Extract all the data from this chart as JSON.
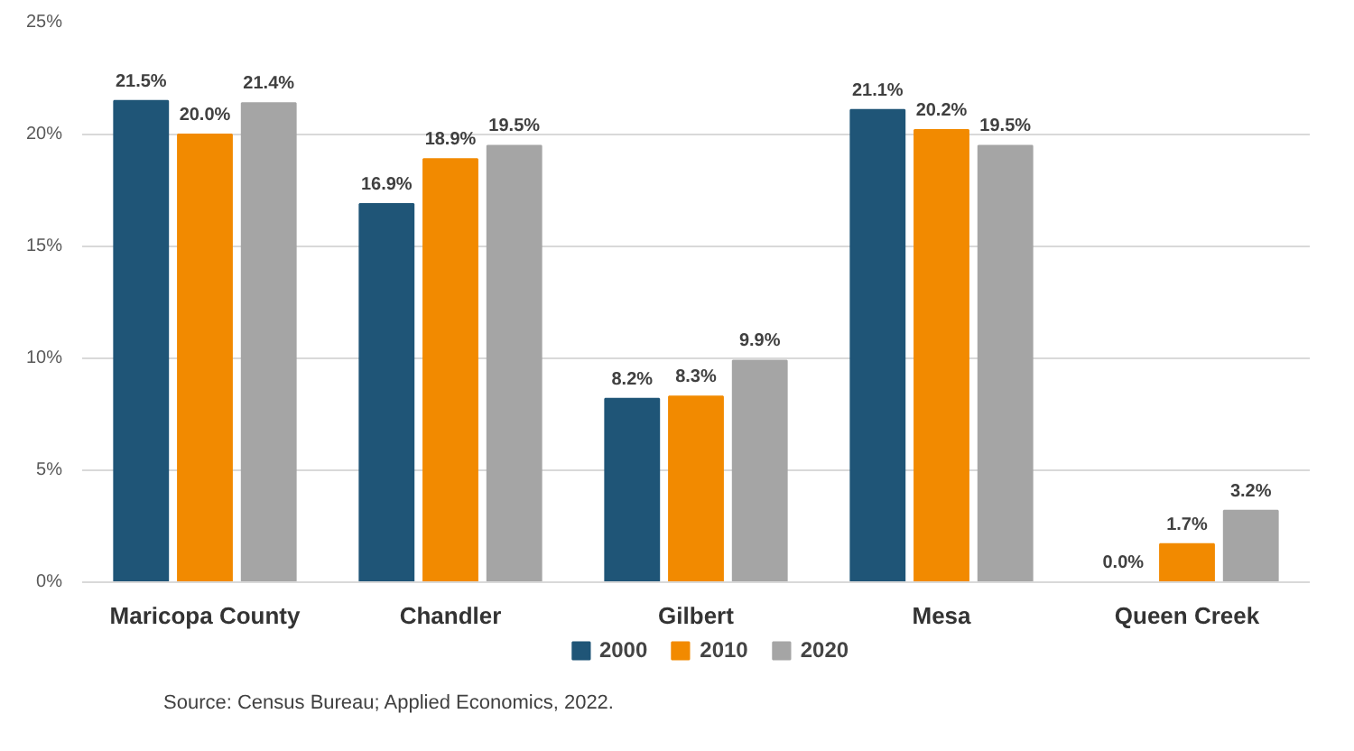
{
  "chart_data": {
    "type": "bar",
    "categories": [
      "Maricopa County",
      "Chandler",
      "Gilbert",
      "Mesa",
      "Queen Creek"
    ],
    "series": [
      {
        "name": "2000",
        "color": "#1f5577",
        "values": [
          21.5,
          16.9,
          8.2,
          21.1,
          0.0
        ],
        "value_labels": [
          "21.5%",
          "16.9%",
          "8.2%",
          "21.1%",
          "0.0%"
        ]
      },
      {
        "name": "2010",
        "color": "#f28a00",
        "values": [
          20.0,
          18.9,
          8.3,
          20.2,
          1.7
        ],
        "value_labels": [
          "20.0%",
          "18.9%",
          "8.3%",
          "20.2%",
          "1.7%"
        ]
      },
      {
        "name": "2020",
        "color": "#a5a5a5",
        "values": [
          21.4,
          19.5,
          9.9,
          19.5,
          3.2
        ],
        "value_labels": [
          "21.4%",
          "19.5%",
          "9.9%",
          "19.5%",
          "3.2%"
        ]
      }
    ],
    "ylim": [
      0,
      25
    ],
    "yticks": [
      {
        "value": 0,
        "label": "0%"
      },
      {
        "value": 5,
        "label": "5%"
      },
      {
        "value": 10,
        "label": "10%"
      },
      {
        "value": 15,
        "label": "15%"
      },
      {
        "value": 20,
        "label": "20%"
      },
      {
        "value": 25,
        "label": "25%"
      }
    ],
    "grid": "y",
    "legend": "bottom",
    "annotations": [
      "Source: Census Bureau; Applied Economics, 2022."
    ]
  }
}
